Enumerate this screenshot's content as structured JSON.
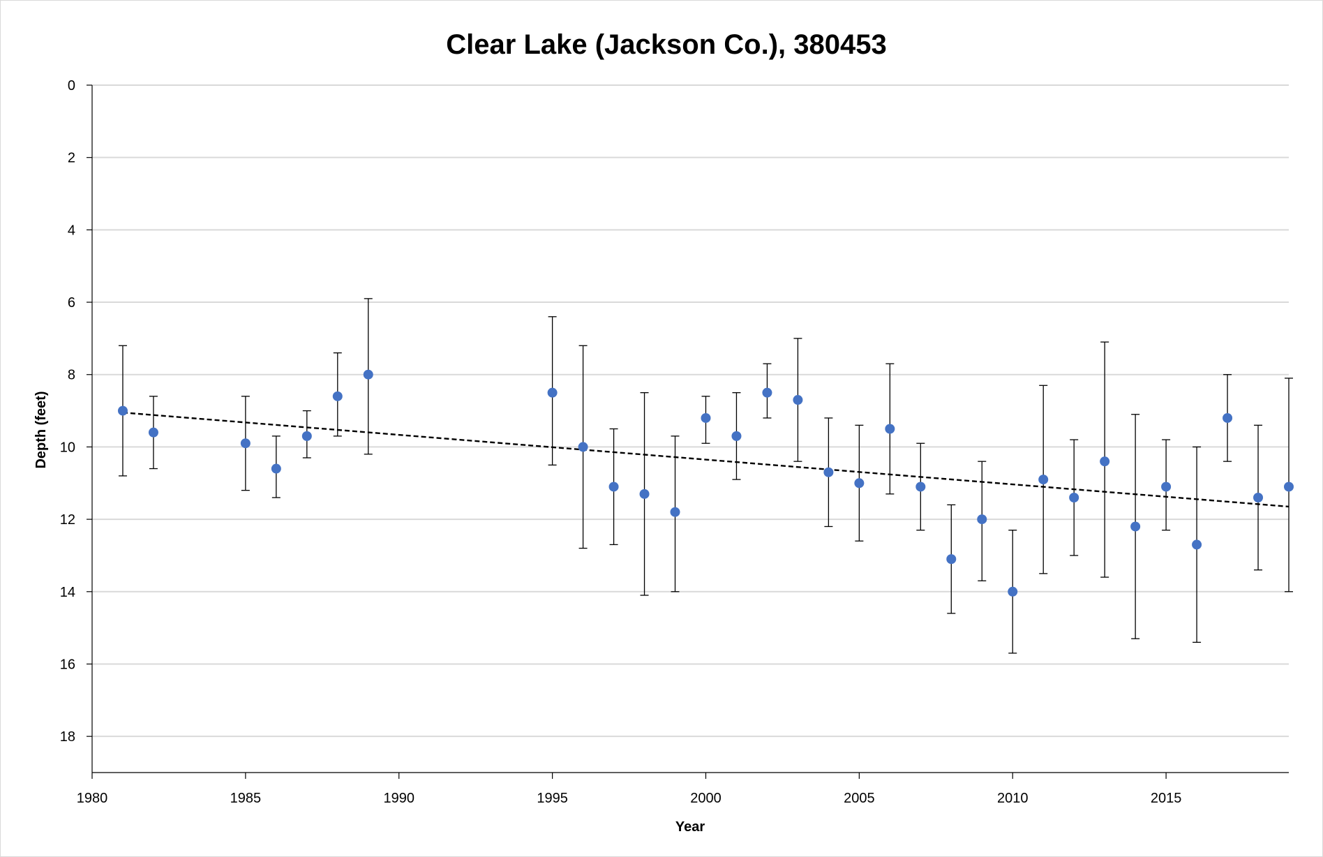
{
  "chart_data": {
    "type": "scatter",
    "title": "Clear Lake (Jackson Co.), 380453",
    "xlabel": "Year",
    "ylabel": "Depth (feet)",
    "xlim": [
      1980,
      2019
    ],
    "ylim": [
      0,
      19
    ],
    "y_inverted": true,
    "x_ticks": [
      1980,
      1985,
      1990,
      1995,
      2000,
      2005,
      2010,
      2015
    ],
    "y_ticks": [
      0,
      2,
      4,
      6,
      8,
      10,
      12,
      14,
      16,
      18
    ],
    "grid": "horizontal",
    "legend": "none",
    "series": [
      {
        "marker_color": "#4472C4",
        "points": [
          {
            "x": 1981,
            "y": 9.0,
            "low": 7.2,
            "high": 10.8
          },
          {
            "x": 1982,
            "y": 9.6,
            "low": 8.6,
            "high": 10.6
          },
          {
            "x": 1985,
            "y": 9.9,
            "low": 8.6,
            "high": 11.2
          },
          {
            "x": 1986,
            "y": 10.6,
            "low": 9.7,
            "high": 11.4
          },
          {
            "x": 1987,
            "y": 9.7,
            "low": 9.0,
            "high": 10.3
          },
          {
            "x": 1988,
            "y": 8.6,
            "low": 7.4,
            "high": 9.7
          },
          {
            "x": 1989,
            "y": 8.0,
            "low": 5.9,
            "high": 10.2
          },
          {
            "x": 1995,
            "y": 8.5,
            "low": 6.4,
            "high": 10.5
          },
          {
            "x": 1996,
            "y": 10.0,
            "low": 7.2,
            "high": 12.8
          },
          {
            "x": 1997,
            "y": 11.1,
            "low": 9.5,
            "high": 12.7
          },
          {
            "x": 1998,
            "y": 11.3,
            "low": 8.5,
            "high": 14.1
          },
          {
            "x": 1999,
            "y": 11.8,
            "low": 9.7,
            "high": 14.0
          },
          {
            "x": 2000,
            "y": 9.2,
            "low": 8.6,
            "high": 9.9
          },
          {
            "x": 2001,
            "y": 9.7,
            "low": 8.5,
            "high": 10.9
          },
          {
            "x": 2002,
            "y": 8.5,
            "low": 7.7,
            "high": 9.2
          },
          {
            "x": 2003,
            "y": 8.7,
            "low": 7.0,
            "high": 10.4
          },
          {
            "x": 2004,
            "y": 10.7,
            "low": 9.2,
            "high": 12.2
          },
          {
            "x": 2005,
            "y": 11.0,
            "low": 9.4,
            "high": 12.6
          },
          {
            "x": 2006,
            "y": 9.5,
            "low": 7.7,
            "high": 11.3
          },
          {
            "x": 2007,
            "y": 11.1,
            "low": 9.9,
            "high": 12.3
          },
          {
            "x": 2008,
            "y": 13.1,
            "low": 11.6,
            "high": 14.6
          },
          {
            "x": 2009,
            "y": 12.0,
            "low": 10.4,
            "high": 13.7
          },
          {
            "x": 2010,
            "y": 14.0,
            "low": 12.3,
            "high": 15.7
          },
          {
            "x": 2011,
            "y": 10.9,
            "low": 8.3,
            "high": 13.5
          },
          {
            "x": 2012,
            "y": 11.4,
            "low": 9.8,
            "high": 13.0
          },
          {
            "x": 2013,
            "y": 10.4,
            "low": 7.1,
            "high": 13.6
          },
          {
            "x": 2014,
            "y": 12.2,
            "low": 9.1,
            "high": 15.3
          },
          {
            "x": 2015,
            "y": 11.1,
            "low": 9.8,
            "high": 12.3
          },
          {
            "x": 2016,
            "y": 12.7,
            "low": 10.0,
            "high": 15.4
          },
          {
            "x": 2017,
            "y": 9.2,
            "low": 8.0,
            "high": 10.4
          },
          {
            "x": 2018,
            "y": 11.4,
            "low": 9.4,
            "high": 13.4
          },
          {
            "x": 2019,
            "y": 11.1,
            "low": 8.1,
            "high": 14.0
          }
        ]
      }
    ],
    "trendline": {
      "style": "dashed",
      "color": "#000000",
      "points": [
        {
          "x": 1981,
          "y": 9.05
        },
        {
          "x": 2019,
          "y": 11.65
        }
      ]
    }
  }
}
